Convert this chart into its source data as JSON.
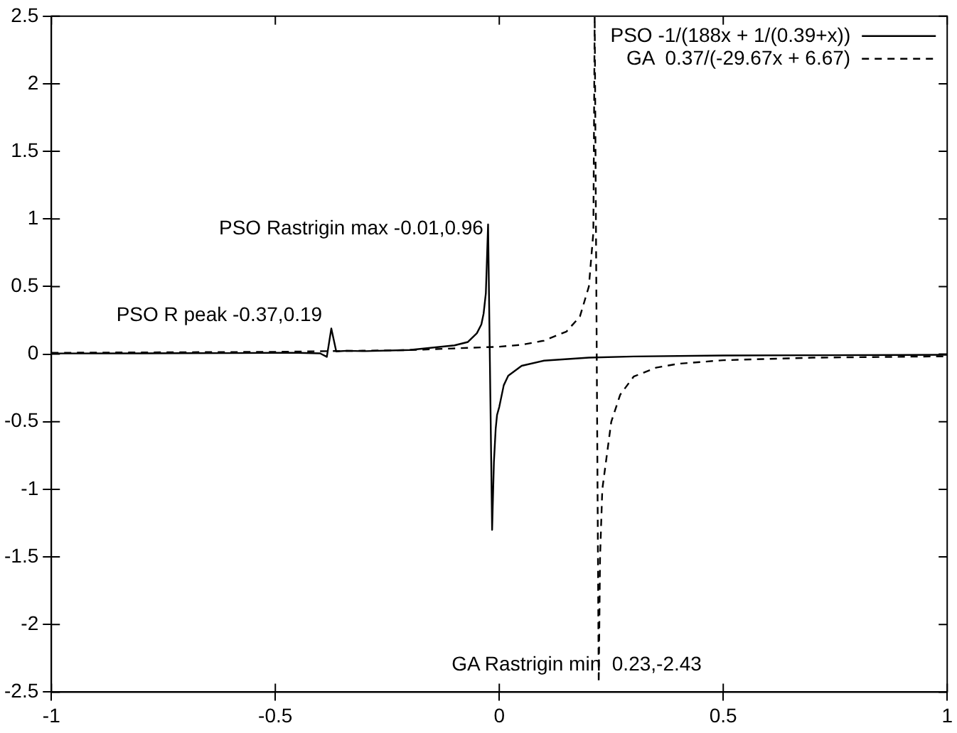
{
  "chart_data": {
    "type": "line",
    "xlim": [
      -1,
      1
    ],
    "ylim": [
      -2.5,
      2.5
    ],
    "xticks": [
      -1,
      -0.5,
      0,
      0.5,
      1
    ],
    "yticks": [
      -2.5,
      -2,
      -1.5,
      -1,
      -0.5,
      0,
      0.5,
      1,
      1.5,
      2,
      2.5
    ],
    "grid": false,
    "legend": "top right",
    "marker": "none",
    "series": [
      {
        "name": "PSO -1/(188x + 1/(0.39+x))",
        "color": "#000000",
        "line_style": "solid",
        "x": [
          -1,
          -0.8,
          -0.6,
          -0.5,
          -0.45,
          -0.4,
          -0.385,
          -0.375,
          -0.364,
          -0.34,
          -0.3,
          -0.2,
          -0.1,
          -0.07,
          -0.05,
          -0.04,
          -0.035,
          -0.03,
          -0.025,
          -0.016,
          -0.012,
          -0.008,
          -0.005,
          0,
          0.01,
          0.02,
          0.05,
          0.1,
          0.2,
          0.3,
          0.5,
          0.7,
          1
        ],
        "values": [
          0.005,
          0.006,
          0.008,
          0.01,
          0.01,
          0.006,
          -0.02,
          0.19,
          0.02,
          0.025,
          0.022,
          0.031,
          0.065,
          0.09,
          0.155,
          0.22,
          0.3,
          0.45,
          0.96,
          -1.3,
          -0.8,
          -0.55,
          -0.45,
          -0.39,
          -0.23,
          -0.16,
          -0.086,
          -0.048,
          -0.026,
          -0.017,
          -0.01,
          -0.008,
          -0.005
        ]
      },
      {
        "name": "GA  0.37/(-29.67x + 6.67)",
        "color": "#000000",
        "line_style": "dashed",
        "x": [
          -1,
          -0.5,
          -0.2,
          0,
          0.05,
          0.1,
          0.15,
          0.18,
          0.2,
          0.21,
          0.213,
          0.222,
          0.225,
          0.23,
          0.25,
          0.27,
          0.3,
          0.35,
          0.4,
          0.5,
          0.7,
          1
        ],
        "values": [
          0.01,
          0.017,
          0.03,
          0.055,
          0.069,
          0.1,
          0.167,
          0.278,
          0.5,
          0.9,
          2.5,
          -2.43,
          -1.5,
          -1.0,
          -0.5,
          -0.3,
          -0.166,
          -0.1,
          -0.071,
          -0.045,
          -0.026,
          -0.016
        ]
      }
    ],
    "annotations": [
      {
        "text": "PSO Rastrigin max -0.01,0.96",
        "x": -0.01,
        "y": 0.96
      },
      {
        "text": "PSO R peak -0.37,0.19",
        "x": -0.37,
        "y": 0.19
      },
      {
        "text": "GA Rastrigin min  0.23,-2.43",
        "x": 0.23,
        "y": -2.43
      }
    ]
  }
}
